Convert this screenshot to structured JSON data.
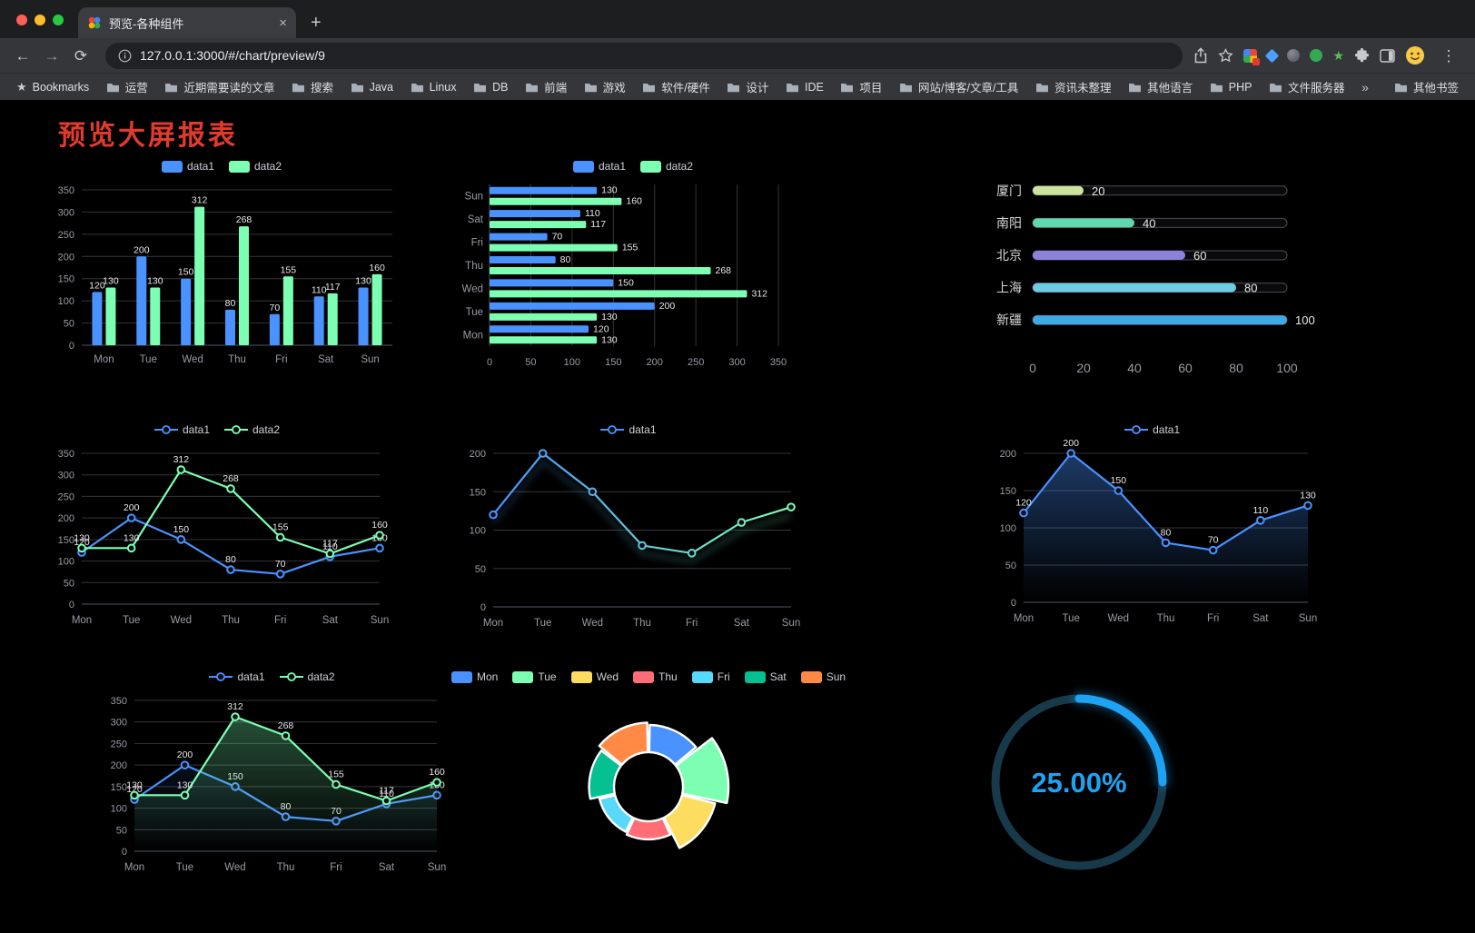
{
  "browser": {
    "glyphs": {
      "close": "×",
      "new_tab": "+",
      "back": "←",
      "forward": "→",
      "reload": "⟳",
      "menu": "⋮",
      "overflow": "»",
      "bookmark_star": "★"
    },
    "tab": {
      "title": "预览-各种组件"
    },
    "nav": {
      "url": "127.0.0.1:3000/#/chart/preview/9"
    },
    "bookmarks": {
      "items": [
        {
          "icon": "star",
          "label": "Bookmarks"
        },
        {
          "icon": "folder",
          "label": "运营"
        },
        {
          "icon": "folder",
          "label": "近期需要读的文章"
        },
        {
          "icon": "folder",
          "label": "搜索"
        },
        {
          "icon": "folder",
          "label": "Java"
        },
        {
          "icon": "folder",
          "label": "Linux"
        },
        {
          "icon": "folder",
          "label": "DB"
        },
        {
          "icon": "folder",
          "label": "前端"
        },
        {
          "icon": "folder",
          "label": "游戏"
        },
        {
          "icon": "folder",
          "label": "软件/硬件"
        },
        {
          "icon": "folder",
          "label": "设计"
        },
        {
          "icon": "folder",
          "label": "IDE"
        },
        {
          "icon": "folder",
          "label": "项目"
        },
        {
          "icon": "folder",
          "label": "网站/博客/文章/工具"
        },
        {
          "icon": "folder",
          "label": "资讯未整理"
        },
        {
          "icon": "folder",
          "label": "其他语言"
        },
        {
          "icon": "folder",
          "label": "PHP"
        },
        {
          "icon": "folder",
          "label": "文件服务器"
        }
      ],
      "other": "其他书签"
    }
  },
  "page": {
    "title": "预览大屏报表"
  },
  "chart_data": [
    {
      "id": "bar-vertical",
      "type": "bar",
      "categories": [
        "Mon",
        "Tue",
        "Wed",
        "Thu",
        "Fri",
        "Sat",
        "Sun"
      ],
      "series": [
        {
          "name": "data1",
          "color": "#4992ff",
          "values": [
            120,
            200,
            150,
            80,
            70,
            110,
            130
          ]
        },
        {
          "name": "data2",
          "color": "#7cffb2",
          "values": [
            130,
            130,
            312,
            268,
            155,
            117,
            160
          ]
        }
      ],
      "ylim": [
        0,
        350
      ],
      "ytick": 50,
      "legend": "top",
      "value_labels": true
    },
    {
      "id": "bar-horizontal",
      "type": "bar-horizontal",
      "categories": [
        "Mon",
        "Tue",
        "Wed",
        "Thu",
        "Fri",
        "Sat",
        "Sun"
      ],
      "series": [
        {
          "name": "data1",
          "color": "#4992ff",
          "values": [
            120,
            200,
            150,
            80,
            70,
            110,
            130
          ]
        },
        {
          "name": "data2",
          "color": "#7cffb2",
          "values": [
            130,
            130,
            312,
            268,
            155,
            117,
            160
          ]
        }
      ],
      "xlim": [
        0,
        350
      ],
      "xtick": 50,
      "legend": "top",
      "value_labels": true
    },
    {
      "id": "progress-bars",
      "type": "progress-bar",
      "categories": [
        "厦门",
        "南阳",
        "北京",
        "上海",
        "新疆"
      ],
      "values": [
        20,
        40,
        60,
        80,
        100
      ],
      "colors": [
        "#cbe39c",
        "#5fd8b0",
        "#8b82dd",
        "#6fcbe3",
        "#3fa9e6"
      ],
      "xlim": [
        0,
        100
      ],
      "xticks": [
        0,
        20,
        40,
        60,
        80,
        100
      ]
    },
    {
      "id": "line-two-series",
      "type": "line",
      "categories": [
        "Mon",
        "Tue",
        "Wed",
        "Thu",
        "Fri",
        "Sat",
        "Sun"
      ],
      "series": [
        {
          "name": "data1",
          "color": "#4992ff",
          "values": [
            120,
            200,
            150,
            80,
            70,
            110,
            130
          ]
        },
        {
          "name": "data2",
          "color": "#7cffb2",
          "values": [
            130,
            130,
            312,
            268,
            155,
            117,
            160
          ]
        }
      ],
      "ylim": [
        0,
        350
      ],
      "ytick": 50,
      "legend": "top",
      "value_labels": true
    },
    {
      "id": "line-gradient",
      "type": "line",
      "categories": [
        "Mon",
        "Tue",
        "Wed",
        "Thu",
        "Fri",
        "Sat",
        "Sun"
      ],
      "series": [
        {
          "name": "data1",
          "gradient": [
            "#4992ff",
            "#7cffb2"
          ],
          "values": [
            120,
            200,
            150,
            80,
            70,
            110,
            130
          ],
          "shadow": true
        }
      ],
      "ylim": [
        0,
        200
      ],
      "ytick": 50,
      "legend": "top",
      "value_labels": false
    },
    {
      "id": "line-area",
      "type": "line",
      "categories": [
        "Mon",
        "Tue",
        "Wed",
        "Thu",
        "Fri",
        "Sat",
        "Sun"
      ],
      "series": [
        {
          "name": "data1",
          "color": "#4992ff",
          "area": "#4992ff",
          "area_opacity": 0.4,
          "values": [
            120,
            200,
            150,
            80,
            70,
            110,
            130
          ]
        }
      ],
      "ylim": [
        0,
        200
      ],
      "ytick": 50,
      "legend": "top",
      "value_labels": true
    },
    {
      "id": "line-area-two",
      "type": "line",
      "categories": [
        "Mon",
        "Tue",
        "Wed",
        "Thu",
        "Fri",
        "Sat",
        "Sun"
      ],
      "series": [
        {
          "name": "data1",
          "color": "#4992ff",
          "area": "#4992ff",
          "area_opacity": 0.18,
          "values": [
            120,
            200,
            150,
            80,
            70,
            110,
            130
          ]
        },
        {
          "name": "data2",
          "color": "#7cffb2",
          "area": "#7cffb2",
          "area_opacity": 0.35,
          "values": [
            130,
            130,
            312,
            268,
            155,
            117,
            160
          ]
        }
      ],
      "ylim": [
        0,
        350
      ],
      "ytick": 50,
      "legend": "top",
      "value_labels": true
    },
    {
      "id": "rose-pie",
      "type": "pie",
      "categories": [
        "Mon",
        "Tue",
        "Wed",
        "Thu",
        "Fri",
        "Sat",
        "Sun"
      ],
      "values": [
        120,
        200,
        150,
        80,
        70,
        110,
        130
      ],
      "colors": [
        "#4992ff",
        "#7cffb2",
        "#fddd60",
        "#ff6e76",
        "#58d9f9",
        "#05c091",
        "#ff8a45"
      ],
      "legend": "top"
    },
    {
      "id": "gauge",
      "type": "gauge",
      "percent": 25,
      "label": "25.00%",
      "color": "#1ea2f3",
      "track_color": "#17394a"
    }
  ]
}
